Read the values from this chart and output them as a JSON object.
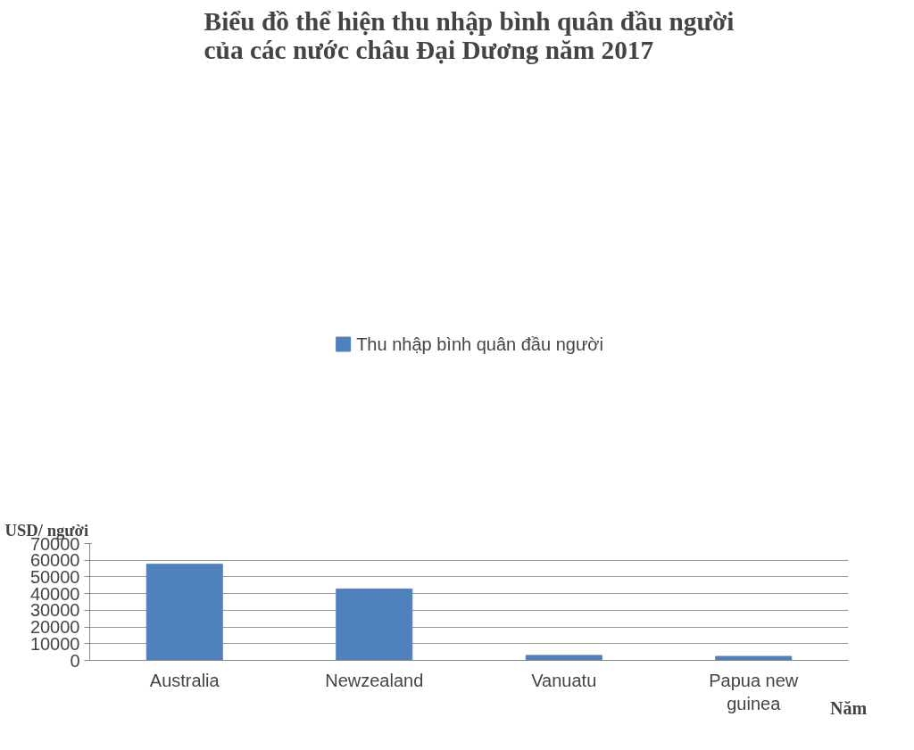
{
  "chart_data": {
    "type": "bar",
    "title": "Biểu đồ thể hiện thu nhập bình quân đầu người\ncủa các nước châu Đại Dương năm 2017",
    "xlabel": "Năm",
    "ylabel": "USD/ người",
    "categories": [
      "Australia",
      "Newzealand",
      "Vanuatu",
      "Papua new\nguinea"
    ],
    "series": [
      {
        "name": "Thu nhập bình quân đầu người",
        "color": "#4f81bd",
        "values": [
          57600,
          42800,
          3000,
          2400
        ]
      }
    ],
    "ylim": [
      0,
      70000
    ],
    "yticks": [
      0,
      10000,
      20000,
      30000,
      40000,
      50000,
      60000,
      70000
    ],
    "grid": "y",
    "legend": "top"
  }
}
